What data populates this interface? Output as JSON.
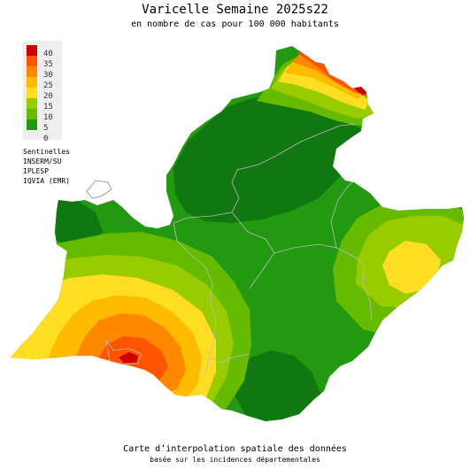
{
  "title": "Varicelle Semaine 2025s22",
  "subtitle": "en nombre de cas pour 100 000 habitants",
  "legend": {
    "items": [
      {
        "label": "40",
        "color": "#cc0000"
      },
      {
        "label": "35",
        "color": "#ff5500"
      },
      {
        "label": "30",
        "color": "#ff8800"
      },
      {
        "label": "25",
        "color": "#ffbb00"
      },
      {
        "label": "20",
        "color": "#ffdd22"
      },
      {
        "label": "15",
        "color": "#99cc00"
      },
      {
        "label": "10",
        "color": "#66bb00"
      },
      {
        "label": "5",
        "color": "#229911"
      },
      {
        "label": "0",
        "color": "#117711"
      }
    ]
  },
  "sources": [
    "Sentinelles",
    "INSERM/SU",
    "IPLESP",
    "IQVIA (EMR)"
  ],
  "footer": {
    "line1": "Carte d’interpolation spatiale des données",
    "line2": "basée sur les incidences départementales"
  },
  "colors": {
    "darkest_green": "#117711",
    "dark_green": "#229911",
    "green": "#66bb00",
    "light_green": "#99cc00",
    "yellow": "#ffdd22",
    "light_orange": "#ffbb00",
    "orange": "#ff8800",
    "red_orange": "#ff5500",
    "red": "#cc0000",
    "border": "#bbbbbb"
  }
}
